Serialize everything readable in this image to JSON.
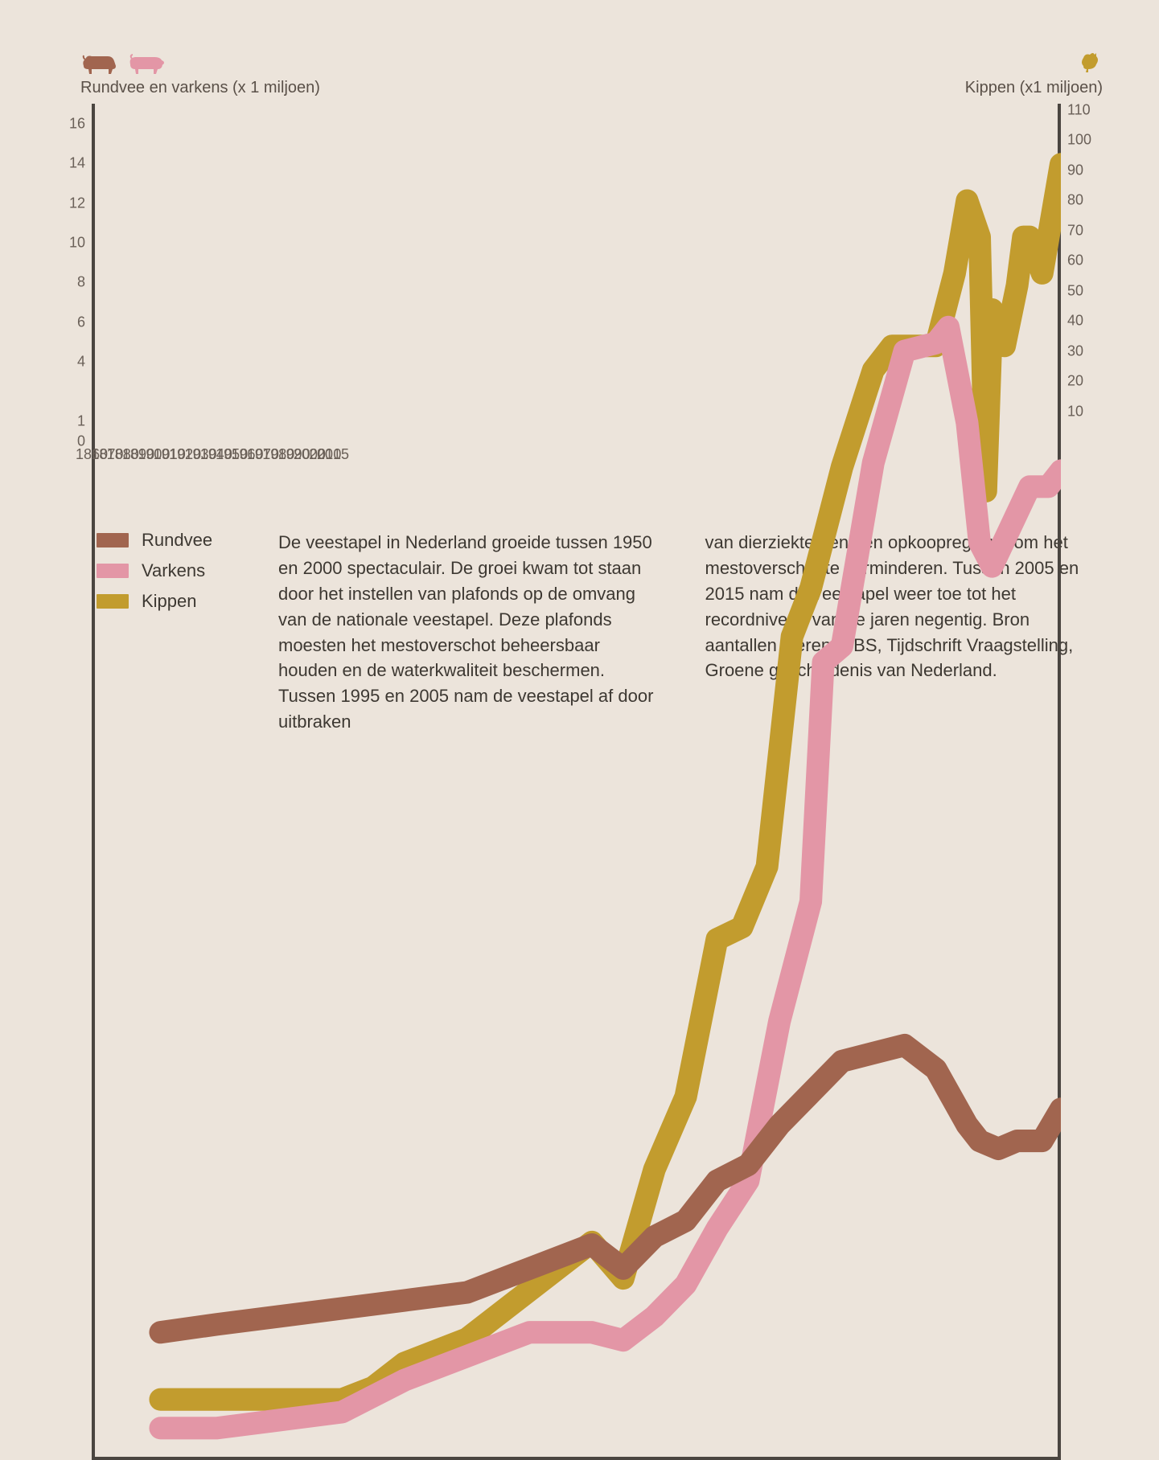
{
  "colors": {
    "bg": "#ece4db",
    "axis": "#4a4540",
    "tick_text": "#6a6058",
    "rundvee": "#a1654f",
    "varkens": "#e396a6",
    "kippen": "#c29c2e"
  },
  "left_axis": {
    "title": "Rundvee en varkens (x 1 miljoen)",
    "min": 0,
    "max": 17,
    "ticks": [
      0,
      1,
      4,
      6,
      8,
      10,
      12,
      14,
      16
    ]
  },
  "right_axis": {
    "title": "Kippen (x1 miljoen)",
    "min": 0,
    "max": 112,
    "ticks": [
      10,
      20,
      30,
      40,
      50,
      60,
      70,
      80,
      90,
      100,
      110
    ]
  },
  "x_axis": {
    "min": 1860,
    "max": 2015,
    "ticks": [
      1860,
      1870,
      1880,
      1890,
      1900,
      1910,
      1920,
      1930,
      1940,
      1950,
      1960,
      1970,
      1980,
      1990,
      2000,
      2010,
      2015
    ]
  },
  "chart": {
    "type": "line",
    "line_width": 7,
    "background": "#ece4db"
  },
  "series": {
    "rundvee": {
      "label": "Rundvee",
      "axis": "left",
      "color_key": "rundvee",
      "data": [
        [
          1871,
          1.6
        ],
        [
          1880,
          1.7
        ],
        [
          1890,
          1.8
        ],
        [
          1900,
          1.9
        ],
        [
          1910,
          2.0
        ],
        [
          1920,
          2.1
        ],
        [
          1930,
          2.4
        ],
        [
          1940,
          2.7
        ],
        [
          1945,
          2.4
        ],
        [
          1950,
          2.8
        ],
        [
          1955,
          3.0
        ],
        [
          1960,
          3.5
        ],
        [
          1965,
          3.7
        ],
        [
          1970,
          4.2
        ],
        [
          1975,
          4.6
        ],
        [
          1980,
          5.0
        ],
        [
          1985,
          5.1
        ],
        [
          1990,
          5.2
        ],
        [
          1995,
          4.9
        ],
        [
          2000,
          4.2
        ],
        [
          2002,
          4.0
        ],
        [
          2005,
          3.9
        ],
        [
          2008,
          4.0
        ],
        [
          2010,
          4.0
        ],
        [
          2012,
          4.0
        ],
        [
          2015,
          4.4
        ]
      ]
    },
    "varkens": {
      "label": "Varkens",
      "axis": "left",
      "color_key": "varkens",
      "data": [
        [
          1871,
          0.4
        ],
        [
          1880,
          0.4
        ],
        [
          1890,
          0.5
        ],
        [
          1900,
          0.6
        ],
        [
          1910,
          1.0
        ],
        [
          1920,
          1.3
        ],
        [
          1930,
          1.6
        ],
        [
          1940,
          1.6
        ],
        [
          1945,
          1.5
        ],
        [
          1950,
          1.8
        ],
        [
          1955,
          2.2
        ],
        [
          1960,
          2.9
        ],
        [
          1965,
          3.5
        ],
        [
          1970,
          5.5
        ],
        [
          1975,
          7.0
        ],
        [
          1977,
          10.0
        ],
        [
          1980,
          10.2
        ],
        [
          1985,
          12.5
        ],
        [
          1990,
          13.9
        ],
        [
          1995,
          14.0
        ],
        [
          1997,
          14.2
        ],
        [
          2000,
          13.0
        ],
        [
          2002,
          11.5
        ],
        [
          2004,
          11.2
        ],
        [
          2007,
          11.7
        ],
        [
          2010,
          12.2
        ],
        [
          2013,
          12.2
        ],
        [
          2015,
          12.4
        ]
      ]
    },
    "kippen": {
      "label": "Kippen",
      "axis": "right",
      "color_key": "kippen",
      "data": [
        [
          1871,
          5
        ],
        [
          1880,
          5
        ],
        [
          1890,
          5
        ],
        [
          1900,
          5
        ],
        [
          1905,
          6
        ],
        [
          1910,
          8
        ],
        [
          1920,
          10
        ],
        [
          1930,
          14
        ],
        [
          1940,
          18
        ],
        [
          1945,
          15
        ],
        [
          1950,
          24
        ],
        [
          1955,
          30
        ],
        [
          1960,
          43
        ],
        [
          1964,
          44
        ],
        [
          1968,
          49
        ],
        [
          1972,
          68
        ],
        [
          1975,
          72
        ],
        [
          1980,
          82
        ],
        [
          1985,
          90
        ],
        [
          1988,
          92
        ],
        [
          1990,
          92
        ],
        [
          1995,
          92
        ],
        [
          1998,
          98
        ],
        [
          2000,
          104
        ],
        [
          2002,
          101
        ],
        [
          2003,
          80
        ],
        [
          2004,
          95
        ],
        [
          2006,
          92
        ],
        [
          2008,
          97
        ],
        [
          2009,
          101
        ],
        [
          2010,
          101
        ],
        [
          2012,
          98
        ],
        [
          2015,
          107
        ]
      ]
    }
  },
  "legend": [
    "rundvee",
    "varkens",
    "kippen"
  ],
  "paragraphs": {
    "col1": "De veestapel in Nederland groeide tussen 1950 en 2000 spectaculair. De groei kwam tot staan door het instellen van plafonds op de omvang van de nationale veestapel. Deze plafonds moesten het mestoverschot beheersbaar houden en de waterkwaliteit beschermen. Tussen 1995 en 2005 nam de veestapel af door uitbraken",
    "col2": "van dierziekten en een opkoopregeling om het mestoverschot te verminderen. Tussen 2005 en 2015 nam de veestapel weer toe tot het recordniveau van de jaren negentig. Bron aantallen dieren: CBS, Tijdschrift Vraagstelling, Groene geschiedenis van Nederland."
  },
  "icons": {
    "cow": "cow-icon",
    "pig": "pig-icon",
    "chicken": "chicken-icon"
  }
}
